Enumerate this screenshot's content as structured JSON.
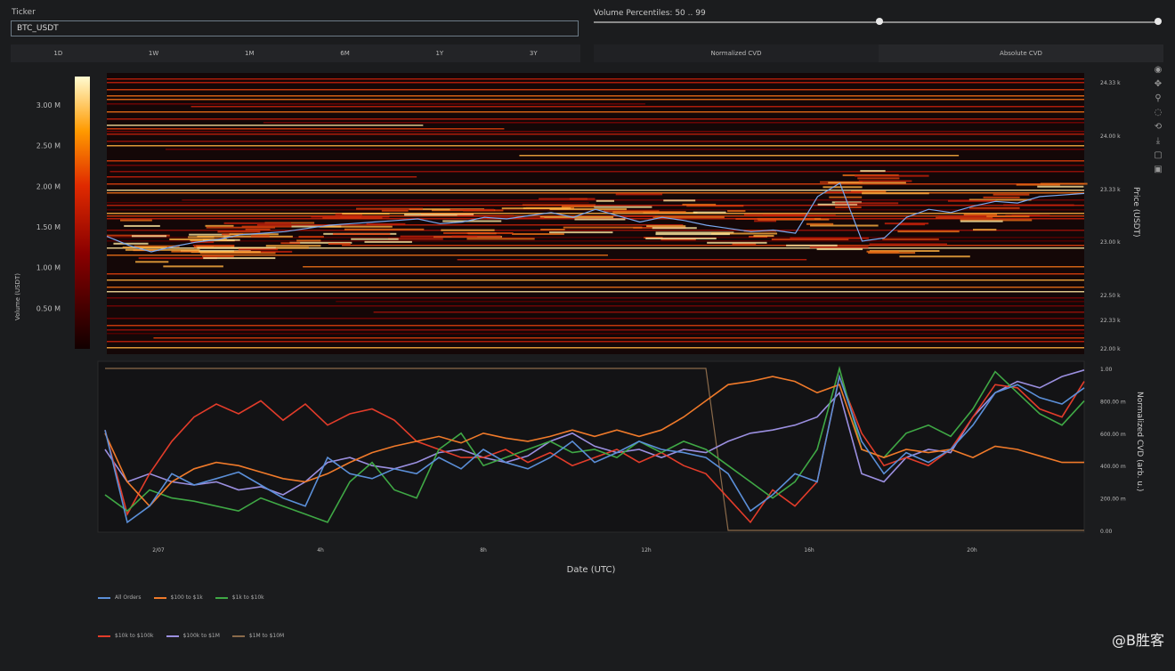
{
  "ticker": {
    "label": "Ticker",
    "value": "BTC_USDT"
  },
  "volume_percentiles": {
    "label": "Volume Percentiles: 50 .. 99",
    "low": 50,
    "high": 99,
    "min": 0,
    "max": 100
  },
  "range_buttons": [
    "1D",
    "1W",
    "1M",
    "6M",
    "1Y",
    "3Y"
  ],
  "cvd_tabs": [
    "Normalized CVD",
    "Absolute CVD"
  ],
  "modebar_icons": [
    "plotly-logo-icon",
    "pan-icon",
    "zoom-icon",
    "lasso-icon",
    "reset-icon",
    "download-icon",
    "autoscale-icon",
    "save-icon"
  ],
  "colors": {
    "background": "#1b1c1e",
    "plot_bg": "#160b0b",
    "all_orders": "#5b8fd8",
    "s100_1k": "#f07a2a",
    "s1k_10k": "#3fa845",
    "s10k_100k": "#e23c2a",
    "s100k_1m": "#9b8fe0",
    "s1m_10m": "#8a6a4a"
  },
  "chart_data": [
    {
      "type": "heatmap",
      "title": "",
      "xlabel": "",
      "ylabel": "Price (USDT)",
      "colorbar_label": "Volume (USDT)",
      "colorbar_ticks": [
        "0.50 M",
        "1.00 M",
        "1.50 M",
        "2.00 M",
        "2.50 M",
        "3.00 M"
      ],
      "colorbar_values": [
        500000,
        1000000,
        1500000,
        2000000,
        2500000,
        3000000
      ],
      "colorscale": "hot",
      "y_ticks": [
        "22.00 k",
        "22.33 k",
        "22.50 k",
        "23.00 k",
        "23.33 k",
        "24.00 k",
        "24.33 k"
      ],
      "y_values": [
        22000,
        22330,
        22500,
        23000,
        23330,
        24000,
        24330
      ],
      "price_line": [
        23030,
        22960,
        22900,
        22950,
        22990,
        23010,
        23040,
        23050,
        23060,
        23080,
        23100,
        23110,
        23120,
        23130,
        23140,
        23110,
        23120,
        23150,
        23140,
        23160,
        23180,
        23150,
        23200,
        23160,
        23120,
        23150,
        23130,
        23100,
        23080,
        23060,
        23070,
        23050,
        23280,
        23400,
        23000,
        23020,
        23150,
        23200,
        23180,
        23220,
        23250,
        23240,
        23280,
        23290,
        23300
      ]
    },
    {
      "type": "line",
      "title": "",
      "xlabel": "Date (UTC)",
      "ylabel": "Normalized CVD (arb. u.)",
      "x_ticks": [
        "2/07",
        "4h",
        "8h",
        "12h",
        "16h",
        "20h"
      ],
      "y_ticks": [
        "0.00",
        "200.00 m",
        "400.00 m",
        "600.00 m",
        "800.00 m",
        "1.00"
      ],
      "ylim": [
        0,
        1
      ],
      "series": [
        {
          "name": "All Orders",
          "values": [
            0.62,
            0.05,
            0.15,
            0.35,
            0.28,
            0.32,
            0.36,
            0.28,
            0.2,
            0.15,
            0.45,
            0.35,
            0.32,
            0.38,
            0.35,
            0.45,
            0.38,
            0.5,
            0.42,
            0.38,
            0.45,
            0.55,
            0.42,
            0.48,
            0.55,
            0.5,
            0.48,
            0.45,
            0.35,
            0.12,
            0.22,
            0.35,
            0.3,
            0.95,
            0.55,
            0.35,
            0.48,
            0.42,
            0.5,
            0.65,
            0.85,
            0.9,
            0.82,
            0.78,
            0.88
          ]
        },
        {
          "name": "$100 to $1k",
          "values": [
            0.6,
            0.3,
            0.15,
            0.3,
            0.38,
            0.42,
            0.4,
            0.36,
            0.32,
            0.3,
            0.35,
            0.42,
            0.48,
            0.52,
            0.55,
            0.58,
            0.54,
            0.6,
            0.57,
            0.55,
            0.58,
            0.62,
            0.58,
            0.62,
            0.58,
            0.62,
            0.7,
            0.8,
            0.9,
            0.92,
            0.95,
            0.92,
            0.85,
            0.9,
            0.5,
            0.45,
            0.5,
            0.48,
            0.5,
            0.45,
            0.52,
            0.5,
            0.46,
            0.42,
            0.42
          ]
        },
        {
          "name": "$1k to $10k",
          "values": [
            0.22,
            0.12,
            0.25,
            0.2,
            0.18,
            0.15,
            0.12,
            0.2,
            0.15,
            0.1,
            0.05,
            0.3,
            0.42,
            0.25,
            0.2,
            0.5,
            0.6,
            0.4,
            0.45,
            0.5,
            0.55,
            0.48,
            0.5,
            0.45,
            0.55,
            0.48,
            0.55,
            0.5,
            0.4,
            0.3,
            0.2,
            0.3,
            0.5,
            1.0,
            0.5,
            0.45,
            0.6,
            0.65,
            0.58,
            0.75,
            0.98,
            0.85,
            0.72,
            0.65,
            0.8
          ]
        },
        {
          "name": "$10k to $100k",
          "values": [
            0.62,
            0.1,
            0.35,
            0.55,
            0.7,
            0.78,
            0.72,
            0.8,
            0.68,
            0.78,
            0.65,
            0.72,
            0.75,
            0.68,
            0.55,
            0.5,
            0.45,
            0.45,
            0.5,
            0.42,
            0.48,
            0.4,
            0.45,
            0.5,
            0.42,
            0.48,
            0.4,
            0.35,
            0.2,
            0.05,
            0.25,
            0.15,
            0.3,
            0.95,
            0.6,
            0.4,
            0.45,
            0.4,
            0.5,
            0.7,
            0.9,
            0.88,
            0.75,
            0.7,
            0.92
          ]
        },
        {
          "name": "$100k to $1M",
          "values": [
            0.5,
            0.3,
            0.35,
            0.3,
            0.28,
            0.3,
            0.25,
            0.27,
            0.22,
            0.3,
            0.42,
            0.45,
            0.4,
            0.38,
            0.42,
            0.48,
            0.5,
            0.45,
            0.42,
            0.46,
            0.55,
            0.6,
            0.52,
            0.48,
            0.5,
            0.45,
            0.5,
            0.48,
            0.55,
            0.6,
            0.62,
            0.65,
            0.7,
            0.85,
            0.35,
            0.3,
            0.45,
            0.5,
            0.48,
            0.7,
            0.85,
            0.92,
            0.88,
            0.95,
            0.99
          ]
        },
        {
          "name": "$1M to $10M",
          "values": [
            1.0,
            1.0,
            1.0,
            1.0,
            1.0,
            1.0,
            1.0,
            1.0,
            1.0,
            1.0,
            1.0,
            1.0,
            1.0,
            1.0,
            1.0,
            1.0,
            1.0,
            1.0,
            1.0,
            1.0,
            1.0,
            1.0,
            1.0,
            1.0,
            1.0,
            1.0,
            1.0,
            1.0,
            0.0,
            0.0,
            0.0,
            0.0,
            0.0,
            0.0,
            0.0,
            0.0,
            0.0,
            0.0,
            0.0,
            0.0,
            0.0,
            0.0,
            0.0,
            0.0,
            0.0
          ]
        }
      ]
    }
  ],
  "watermark": "@B胜客"
}
